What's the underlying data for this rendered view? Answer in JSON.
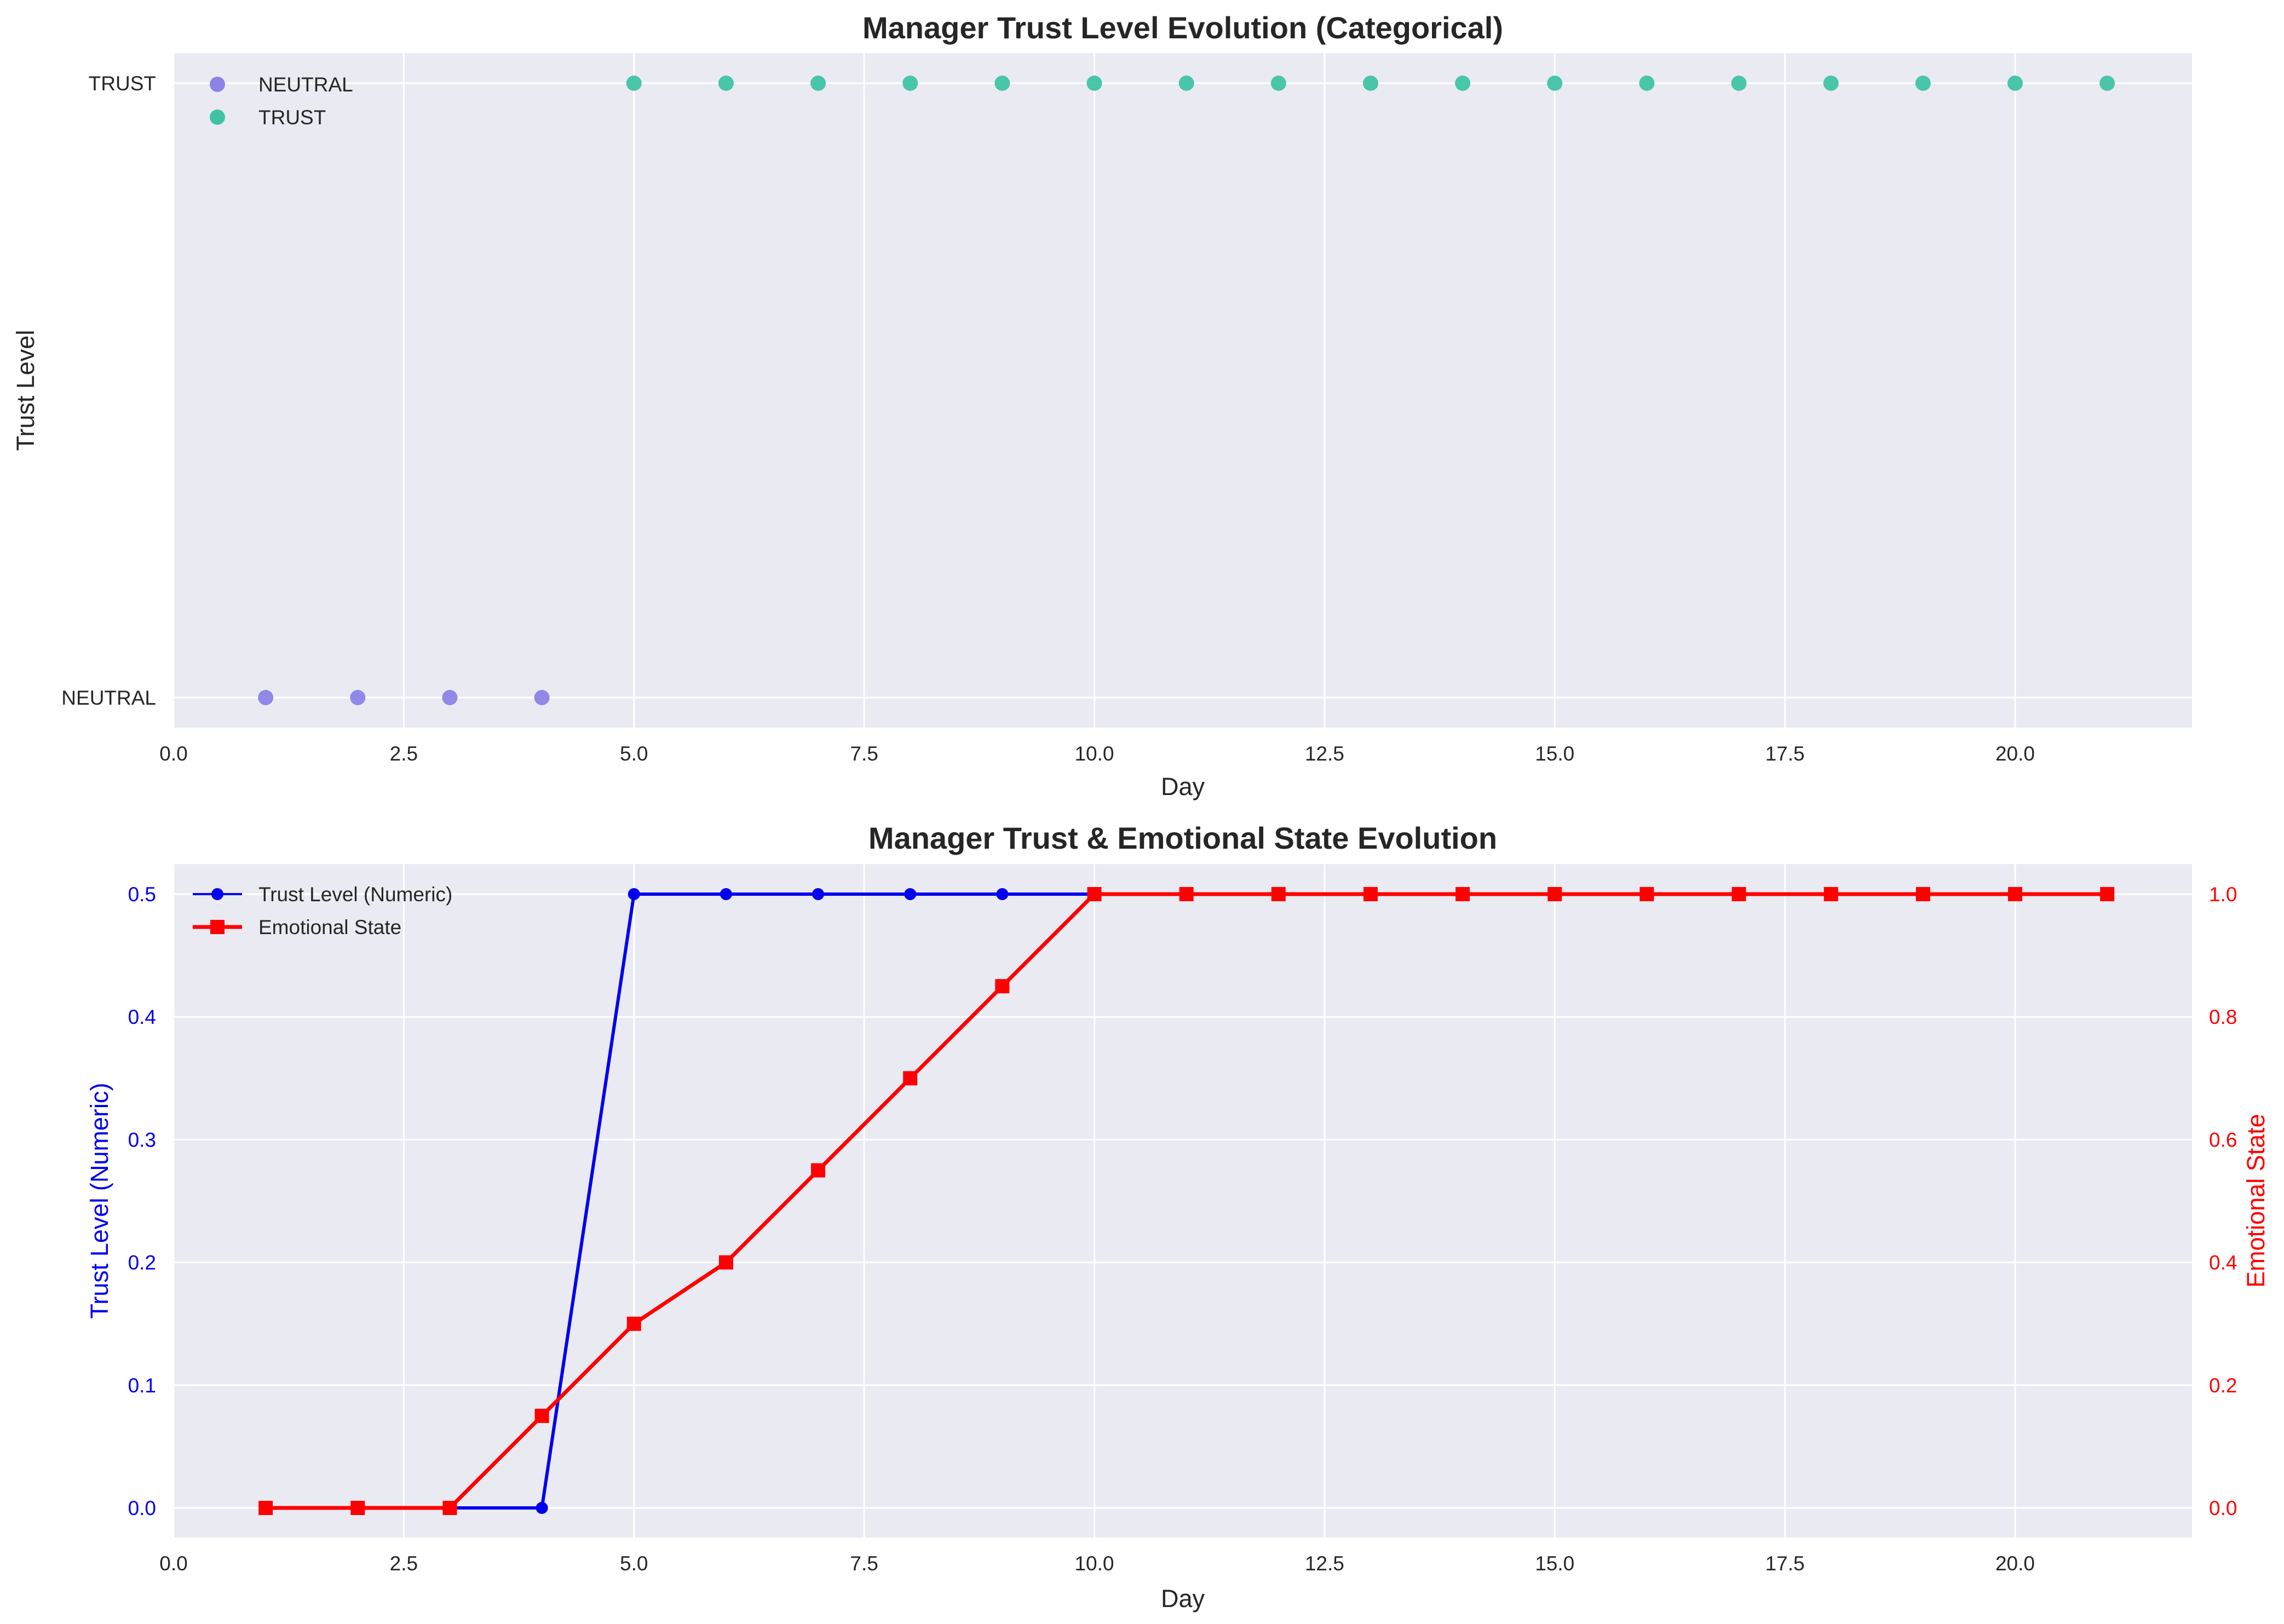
{
  "chart_data": [
    {
      "type": "scatter",
      "title": "Manager Trust Level Evolution (Categorical)",
      "xlabel": "Day",
      "ylabel": "Trust Level",
      "xlim": [
        0,
        22
      ],
      "x_ticks": [
        0.0,
        2.5,
        5.0,
        7.5,
        10.0,
        12.5,
        15.0,
        17.5,
        20.0
      ],
      "x_tick_labels": [
        "0.0",
        "2.5",
        "5.0",
        "7.5",
        "10.0",
        "12.5",
        "15.0",
        "17.5",
        "20.0"
      ],
      "y_categories": [
        "NEUTRAL",
        "TRUST"
      ],
      "grid": true,
      "legend": "top-left",
      "series": [
        {
          "name": "NEUTRAL",
          "color": "#8c83e6",
          "x": [
            1,
            2,
            3,
            4
          ],
          "y": [
            "NEUTRAL",
            "NEUTRAL",
            "NEUTRAL",
            "NEUTRAL"
          ]
        },
        {
          "name": "TRUST",
          "color": "#40c3a5",
          "x": [
            5,
            6,
            7,
            8,
            9,
            10,
            11,
            12,
            13,
            14,
            15,
            16,
            17,
            18,
            19,
            20,
            21
          ],
          "y": [
            "TRUST",
            "TRUST",
            "TRUST",
            "TRUST",
            "TRUST",
            "TRUST",
            "TRUST",
            "TRUST",
            "TRUST",
            "TRUST",
            "TRUST",
            "TRUST",
            "TRUST",
            "TRUST",
            "TRUST",
            "TRUST",
            "TRUST"
          ]
        }
      ]
    },
    {
      "type": "line",
      "title": "Manager Trust & Emotional State Evolution",
      "xlabel": "Day",
      "ylabel_left": "Trust Level (Numeric)",
      "ylabel_right": "Emotional State",
      "xlim": [
        0,
        22
      ],
      "x_ticks": [
        0.0,
        2.5,
        5.0,
        7.5,
        10.0,
        12.5,
        15.0,
        17.5,
        20.0
      ],
      "x_tick_labels": [
        "0.0",
        "2.5",
        "5.0",
        "7.5",
        "10.0",
        "12.5",
        "15.0",
        "17.5",
        "20.0"
      ],
      "ylim_left": [
        -0.025,
        0.525
      ],
      "y_ticks_left": [
        0.0,
        0.1,
        0.2,
        0.3,
        0.4,
        0.5
      ],
      "y_tick_labels_left": [
        "0.0",
        "0.1",
        "0.2",
        "0.3",
        "0.4",
        "0.5"
      ],
      "ylim_right": [
        -0.05,
        1.05
      ],
      "y_ticks_right": [
        0.0,
        0.2,
        0.4,
        0.6,
        0.8,
        1.0
      ],
      "y_tick_labels_right": [
        "0.0",
        "0.2",
        "0.4",
        "0.6",
        "0.8",
        "1.0"
      ],
      "grid": true,
      "legend": "top-left",
      "series": [
        {
          "name": "Trust Level (Numeric)",
          "color": "#0000ee",
          "axis": "left",
          "marker": "circle",
          "x": [
            1,
            2,
            3,
            4,
            5,
            6,
            7,
            8,
            9,
            10,
            11,
            12,
            13,
            14,
            15,
            16,
            17,
            18,
            19,
            20,
            21
          ],
          "y": [
            0,
            0,
            0,
            0,
            0.5,
            0.5,
            0.5,
            0.5,
            0.5,
            0.5,
            0.5,
            0.5,
            0.5,
            0.5,
            0.5,
            0.5,
            0.5,
            0.5,
            0.5,
            0.5,
            0.5
          ]
        },
        {
          "name": "Emotional State",
          "color": "#ff0000",
          "axis": "right",
          "marker": "square",
          "x": [
            1,
            2,
            3,
            4,
            5,
            6,
            7,
            8,
            9,
            10,
            11,
            12,
            13,
            14,
            15,
            16,
            17,
            18,
            19,
            20,
            21
          ],
          "y": [
            0,
            0,
            0,
            0.15,
            0.3,
            0.4,
            0.55,
            0.7,
            0.85,
            1.0,
            1.0,
            1.0,
            1.0,
            1.0,
            1.0,
            1.0,
            1.0,
            1.0,
            1.0,
            1.0,
            1.0
          ]
        }
      ]
    }
  ]
}
